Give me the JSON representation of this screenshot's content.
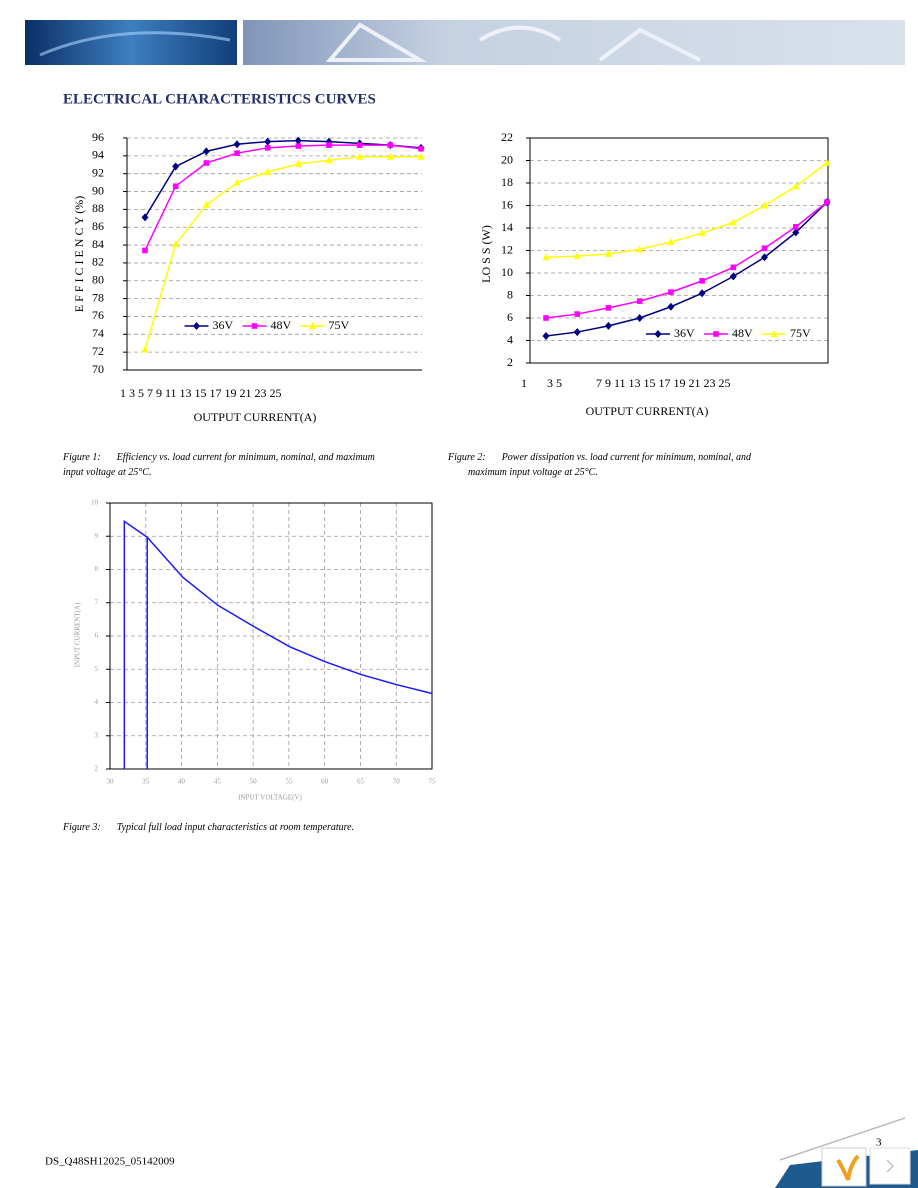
{
  "header": {
    "title": "ELECTRICAL CHARACTERISTICS CURVES"
  },
  "chart_data": [
    {
      "type": "line",
      "categories": [
        null,
        null,
        null,
        null,
        null,
        null,
        null,
        null,
        null,
        null
      ],
      "xtick_text": [
        "1 3 5 7 9 11 13 15 17 19 21 23 25"
      ],
      "x_label": "OUTPUT CURRENT(A)",
      "y_label": "E F F I C I E N C Y (%)",
      "ylim": [
        70,
        96
      ],
      "yticks": [
        70,
        72,
        74,
        76,
        78,
        80,
        82,
        84,
        86,
        88,
        90,
        92,
        94,
        96
      ],
      "grid": true,
      "legend": "lower center",
      "series": [
        {
          "name": "36V",
          "color": "#000080",
          "marker": "diamond",
          "values": [
            87.1,
            92.8,
            94.5,
            95.3,
            95.6,
            95.7,
            95.6,
            95.4,
            95.2,
            94.9
          ]
        },
        {
          "name": "48V",
          "color": "#ff00ff",
          "marker": "square",
          "values": [
            83.4,
            90.6,
            93.2,
            94.3,
            94.9,
            95.1,
            95.2,
            95.2,
            95.2,
            94.8
          ]
        },
        {
          "name": "75V",
          "color": "#ffff00",
          "marker": "triangle",
          "values": [
            72.3,
            84.1,
            88.5,
            91.0,
            92.2,
            93.1,
            93.5,
            93.9,
            93.9,
            93.9
          ]
        }
      ]
    },
    {
      "type": "line",
      "categories": [
        null,
        null,
        null,
        null,
        null,
        null,
        null,
        null,
        null,
        null
      ],
      "xtick_text": [
        "1",
        "3 5",
        "7 9 11 13 15 17 19 21 23 25"
      ],
      "x_label": "OUTPUT CURRENT(A)",
      "y_label": "LO S S (W)",
      "ylim": [
        2,
        22
      ],
      "yticks": [
        2,
        4,
        6,
        8,
        10,
        12,
        14,
        16,
        18,
        20,
        22
      ],
      "grid": true,
      "legend": "lower right",
      "series": [
        {
          "name": "36V",
          "color": "#000080",
          "marker": "diamond",
          "values": [
            4.4,
            4.75,
            5.3,
            6.0,
            7.0,
            8.2,
            9.7,
            11.4,
            13.6,
            16.3
          ]
        },
        {
          "name": "48V",
          "color": "#ff00ff",
          "marker": "square",
          "values": [
            6.0,
            6.35,
            6.9,
            7.5,
            8.3,
            9.3,
            10.5,
            12.2,
            14.1,
            16.3
          ]
        },
        {
          "name": "75V",
          "color": "#ffff00",
          "marker": "triangle",
          "values": [
            11.4,
            11.5,
            11.7,
            12.1,
            12.75,
            13.55,
            14.5,
            16.0,
            17.7,
            19.8
          ]
        }
      ]
    },
    {
      "type": "line",
      "x_label": "INPUT VOLTAGE(V)",
      "y_label": "INPUT CURRENT(A)",
      "xlim": [
        30,
        75
      ],
      "xticks": [
        30,
        35,
        40,
        45,
        50,
        55,
        60,
        65,
        70,
        75
      ],
      "ylim": [
        2,
        10
      ],
      "yticks": [
        2,
        3,
        4,
        5,
        6,
        7,
        8,
        9,
        10
      ],
      "grid": true,
      "series": [
        {
          "color": "#1a1aff",
          "x": [
            32,
            32,
            35.2,
            35.2,
            null,
            35.2,
            40.2,
            45.1,
            50.3,
            55.1,
            60.0,
            65.1,
            70.0,
            75.0
          ],
          "values": [
            2,
            9.45,
            8.97,
            2,
            null,
            8.97,
            7.76,
            6.92,
            6.26,
            5.68,
            5.23,
            4.84,
            4.54,
            4.27
          ]
        }
      ]
    }
  ],
  "captions": [
    {
      "label": "Figure 1:",
      "text": "Efficiency vs. load current for minimum, nominal, and maximum input voltage at 25°C."
    },
    {
      "label": "Figure 2:",
      "text": "Power dissipation vs. load current for minimum, nominal, and maximum input voltage at 25°C."
    },
    {
      "label": "Figure 3:",
      "text": "Typical full load input characteristics at room temperature."
    }
  ],
  "footer": {
    "doc_id": "DS_Q48SH12025_05142009",
    "page": "3"
  }
}
